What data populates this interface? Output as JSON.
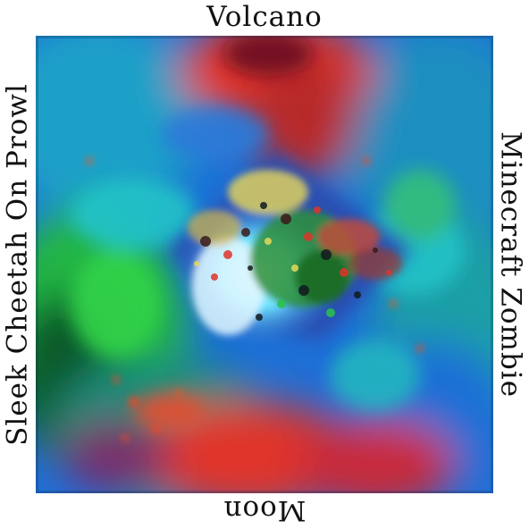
{
  "labels": {
    "top": "Volcano",
    "right": "Minecraft Zombie",
    "bottom": "Moon",
    "left": "Sleek Cheetah On Prowl"
  },
  "image": {
    "description_icon": "psychedelic-volcano-painting",
    "palette": {
      "sky_blue": "#1e6fd6",
      "cyan": "#22c3c8",
      "green": "#22b545",
      "dark_green": "#0f5a2a",
      "red": "#e0342a",
      "dark_red": "#6a1020",
      "white": "#f2f6f2",
      "yellow": "#e8d85a"
    }
  }
}
